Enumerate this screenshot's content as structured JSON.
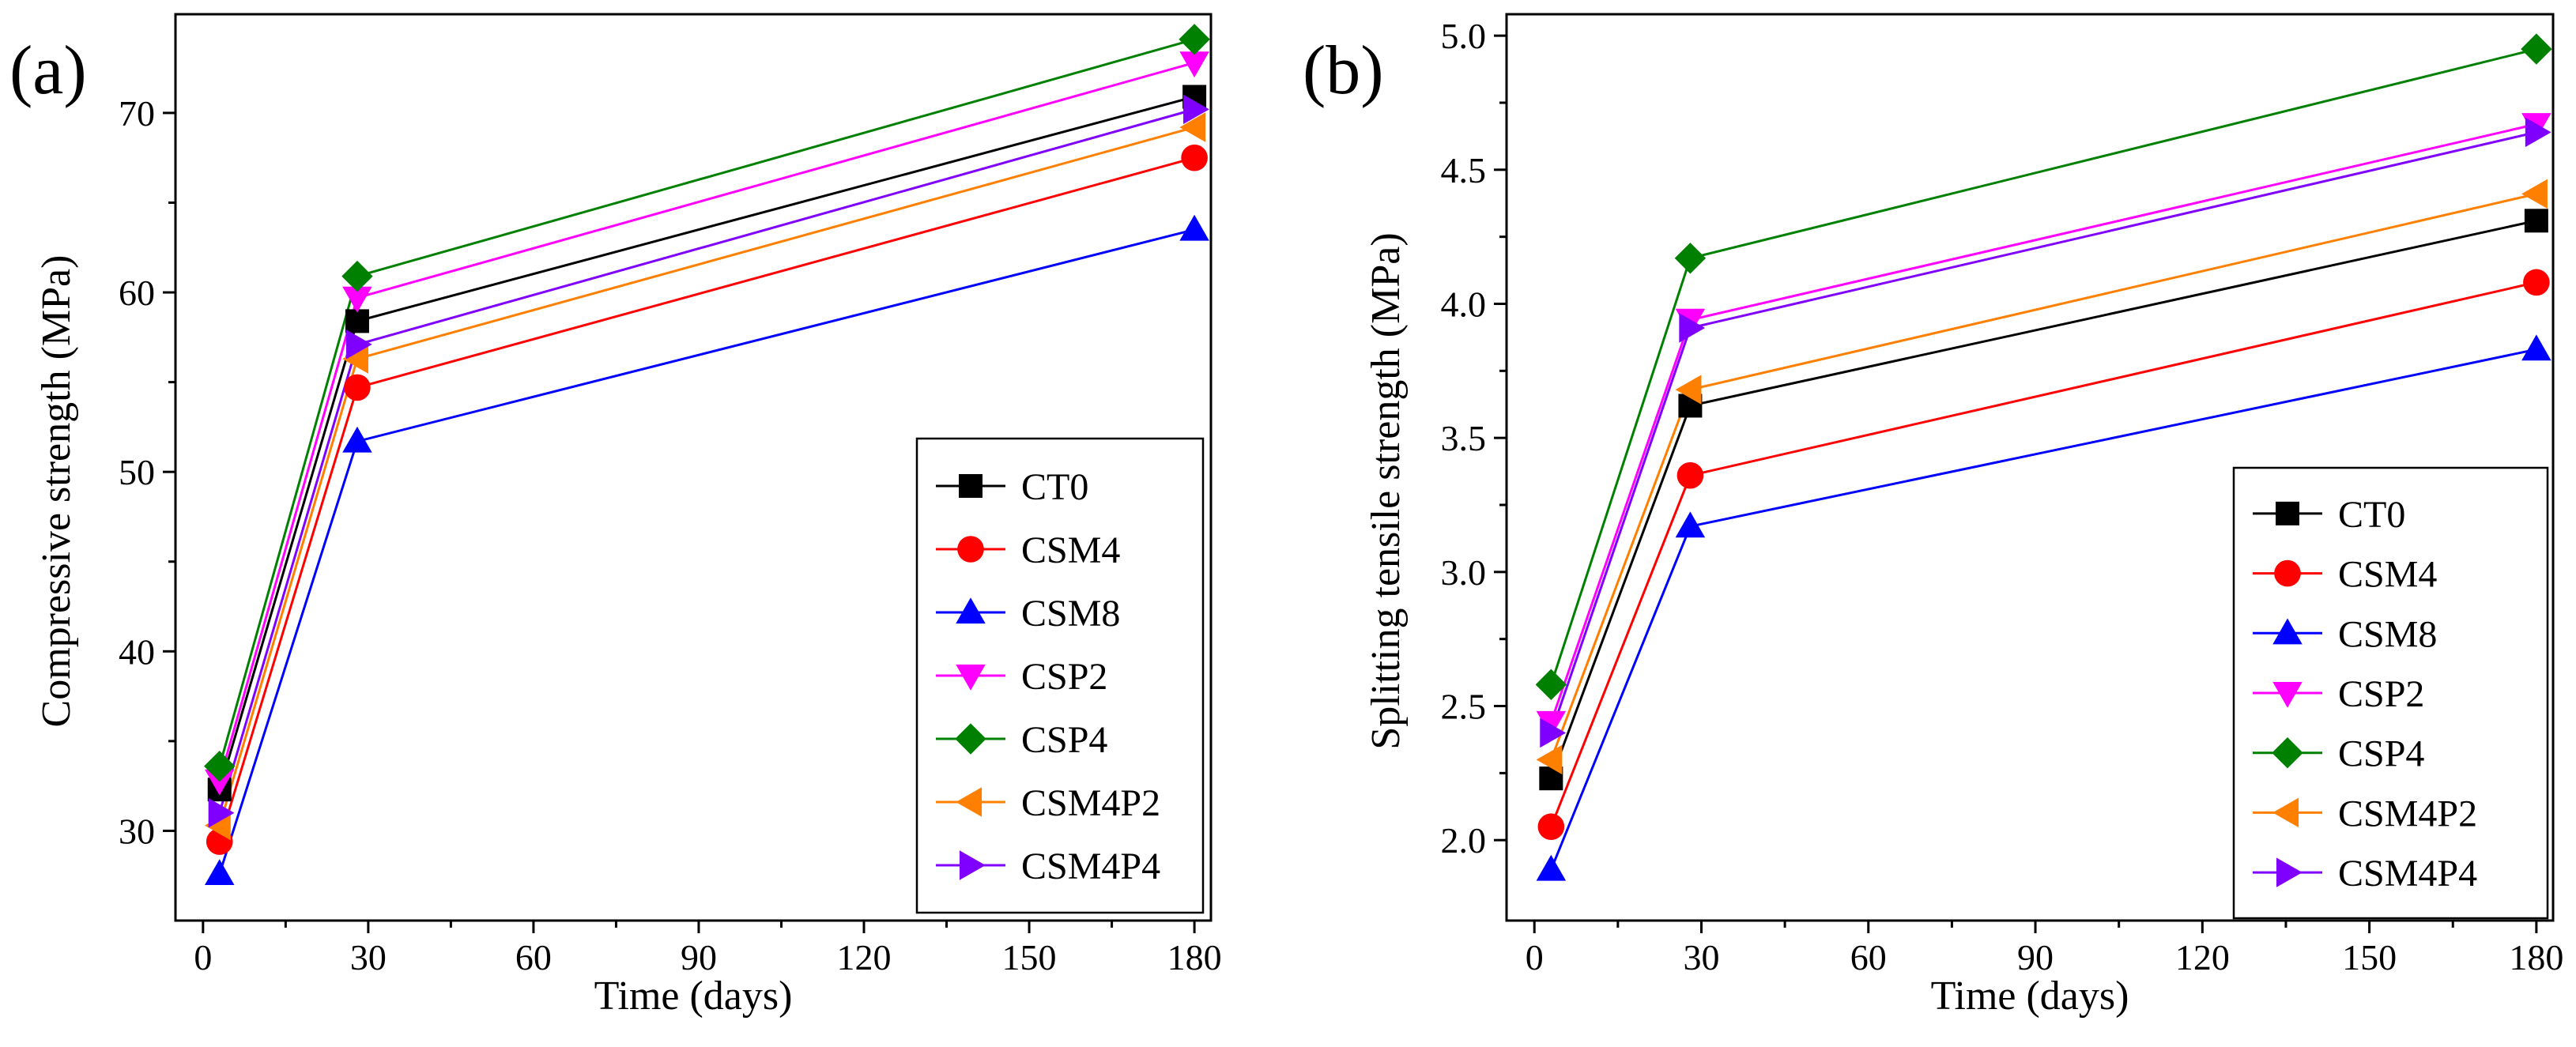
{
  "chart_data": [
    {
      "type": "line",
      "panel_label": "(a)",
      "title": "",
      "xlabel": "Time (days)",
      "ylabel": "Compressive strength (MPa)",
      "xlim": [
        -5,
        183
      ],
      "ylim": [
        25,
        75.5
      ],
      "xticks": [
        0,
        30,
        60,
        90,
        120,
        150,
        180
      ],
      "yticks": [
        30,
        40,
        50,
        60,
        70
      ],
      "x": [
        3,
        28,
        180
      ],
      "legend_position": "bottom-right",
      "grid": false,
      "series": [
        {
          "name": "CT0",
          "color": "#000000",
          "marker": "square",
          "values": [
            32.3,
            58.4,
            70.9
          ]
        },
        {
          "name": "CSM4",
          "color": "#ff0000",
          "marker": "circle",
          "values": [
            29.4,
            54.7,
            67.5
          ]
        },
        {
          "name": "CSM8",
          "color": "#0000ff",
          "marker": "triangle-up",
          "values": [
            27.6,
            51.7,
            63.5
          ]
        },
        {
          "name": "CSP2",
          "color": "#ff00ff",
          "marker": "triangle-down",
          "values": [
            32.8,
            59.7,
            72.8
          ]
        },
        {
          "name": "CSP4",
          "color": "#008000",
          "marker": "diamond",
          "values": [
            33.6,
            60.9,
            74.1
          ]
        },
        {
          "name": "CSM4P2",
          "color": "#ff8000",
          "marker": "triangle-left",
          "values": [
            30.3,
            56.3,
            69.2
          ]
        },
        {
          "name": "CSM4P4",
          "color": "#8000ff",
          "marker": "triangle-right",
          "values": [
            31.0,
            57.1,
            70.2
          ]
        }
      ]
    },
    {
      "type": "line",
      "panel_label": "(b)",
      "title": "",
      "xlabel": "Time (days)",
      "ylabel": "Splitting tensile strength (MPa)",
      "xlim": [
        -5,
        183
      ],
      "ylim": [
        1.7,
        5.08
      ],
      "xticks": [
        0,
        30,
        60,
        90,
        120,
        150,
        180
      ],
      "yticks": [
        2.0,
        2.5,
        3.0,
        3.5,
        4.0,
        4.5,
        5.0
      ],
      "ytick_labels": [
        "2.0",
        "2.5",
        "3.0",
        "3.5",
        "4.0",
        "4.5",
        "5.0"
      ],
      "x": [
        3,
        28,
        180
      ],
      "legend_position": "bottom-right",
      "grid": false,
      "series": [
        {
          "name": "CT0",
          "color": "#000000",
          "marker": "square",
          "values": [
            2.23,
            3.62,
            4.31
          ]
        },
        {
          "name": "CSM4",
          "color": "#ff0000",
          "marker": "circle",
          "values": [
            2.05,
            3.36,
            4.08
          ]
        },
        {
          "name": "CSM8",
          "color": "#0000ff",
          "marker": "triangle-up",
          "values": [
            1.89,
            3.17,
            3.83
          ]
        },
        {
          "name": "CSP2",
          "color": "#ff00ff",
          "marker": "triangle-down",
          "values": [
            2.44,
            3.94,
            4.67
          ]
        },
        {
          "name": "CSP4",
          "color": "#008000",
          "marker": "diamond",
          "values": [
            2.58,
            4.17,
            4.95
          ]
        },
        {
          "name": "CSM4P2",
          "color": "#ff8000",
          "marker": "triangle-left",
          "values": [
            2.3,
            3.68,
            4.41
          ]
        },
        {
          "name": "CSM4P4",
          "color": "#8000ff",
          "marker": "triangle-right",
          "values": [
            2.4,
            3.91,
            4.64
          ]
        }
      ]
    }
  ]
}
